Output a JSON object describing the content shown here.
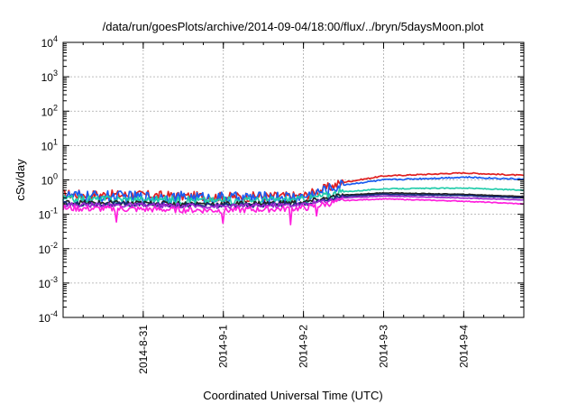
{
  "chart_data": {
    "type": "line",
    "title": "/data/run/goesPlots/archive/2014-09-04/18:00/flux/../bryn/5daysMoon.plot",
    "xlabel": "Coordinated Universal Time (UTC)",
    "ylabel": "cSv/day",
    "y_scale": "log",
    "ylim": [
      0.0001,
      10000
    ],
    "y_ticks": [
      {
        "base": "10",
        "exp": "-4",
        "value": 0.0001
      },
      {
        "base": "10",
        "exp": "-3",
        "value": 0.001
      },
      {
        "base": "10",
        "exp": "-2",
        "value": 0.01
      },
      {
        "base": "10",
        "exp": "-1",
        "value": 0.1
      },
      {
        "base": "10",
        "exp": "0",
        "value": 1
      },
      {
        "base": "10",
        "exp": "1",
        "value": 10
      },
      {
        "base": "10",
        "exp": "2",
        "value": 100
      },
      {
        "base": "10",
        "exp": "3",
        "value": 1000
      },
      {
        "base": "10",
        "exp": "4",
        "value": 10000
      }
    ],
    "xlim": [
      "2014-08-30T00:00",
      "2014-09-04T18:00"
    ],
    "x_ticks": [
      "2014-8-31",
      "2014-9-1",
      "2014-9-2",
      "2014-9-3",
      "2014-9-4"
    ],
    "grid": true,
    "series": [
      {
        "color": "#e02020",
        "noise": 0.28,
        "spikes": [],
        "x": [
          "2014-08-30",
          "2014-08-31",
          "2014-09-01",
          "2014-09-02",
          "2014-09-02T12:00",
          "2014-09-03",
          "2014-09-04",
          "2014-09-04T18:00"
        ],
        "values": [
          0.38,
          0.36,
          0.32,
          0.34,
          0.85,
          1.3,
          1.6,
          1.35
        ]
      },
      {
        "color": "#1a5cf0",
        "noise": 0.34,
        "spikes": [],
        "x": [
          "2014-08-30",
          "2014-08-31",
          "2014-09-01",
          "2014-09-02",
          "2014-09-02T12:00",
          "2014-09-03",
          "2014-09-04",
          "2014-09-04T18:00"
        ],
        "values": [
          0.34,
          0.32,
          0.3,
          0.32,
          0.72,
          1.0,
          1.2,
          1.05
        ]
      },
      {
        "color": "#22ccaa",
        "noise": 0.22,
        "spikes": [],
        "x": [
          "2014-08-30",
          "2014-08-31",
          "2014-09-01",
          "2014-09-02",
          "2014-09-02T12:00",
          "2014-09-03",
          "2014-09-04",
          "2014-09-04T18:00"
        ],
        "values": [
          0.28,
          0.27,
          0.25,
          0.27,
          0.45,
          0.55,
          0.58,
          0.5
        ]
      },
      {
        "color": "#222222",
        "noise": 0.14,
        "spikes": [],
        "x": [
          "2014-08-30",
          "2014-08-31",
          "2014-09-01",
          "2014-09-02",
          "2014-09-02T12:00",
          "2014-09-03",
          "2014-09-04",
          "2014-09-04T18:00"
        ],
        "values": [
          0.22,
          0.21,
          0.2,
          0.22,
          0.36,
          0.42,
          0.38,
          0.33
        ]
      },
      {
        "color": "#1a2a80",
        "noise": 0.14,
        "spikes": [],
        "x": [
          "2014-08-30",
          "2014-08-31",
          "2014-09-01",
          "2014-09-02",
          "2014-09-02T12:00",
          "2014-09-03",
          "2014-09-04",
          "2014-09-04T18:00"
        ],
        "values": [
          0.2,
          0.19,
          0.18,
          0.2,
          0.33,
          0.38,
          0.35,
          0.3
        ]
      },
      {
        "color": "#9a2ad0",
        "noise": 0.14,
        "spikes": [],
        "x": [
          "2014-08-30",
          "2014-08-31",
          "2014-09-01",
          "2014-09-02",
          "2014-09-02T12:00",
          "2014-09-03",
          "2014-09-04",
          "2014-09-04T18:00"
        ],
        "values": [
          0.19,
          0.18,
          0.17,
          0.19,
          0.3,
          0.34,
          0.3,
          0.26
        ]
      },
      {
        "color": "#ff20dd",
        "noise": 0.18,
        "spikes": [
          [
            "2014-08-30T16:00",
            0.06
          ],
          [
            "2014-09-01T00:00",
            0.055
          ],
          [
            "2014-09-01T20:00",
            0.05
          ],
          [
            "2014-09-02T04:00",
            0.09
          ]
        ],
        "x": [
          "2014-08-30",
          "2014-08-31",
          "2014-09-01",
          "2014-09-02",
          "2014-09-02T12:00",
          "2014-09-03",
          "2014-09-04",
          "2014-09-04T18:00"
        ],
        "values": [
          0.15,
          0.14,
          0.13,
          0.15,
          0.25,
          0.28,
          0.24,
          0.2
        ]
      }
    ]
  }
}
